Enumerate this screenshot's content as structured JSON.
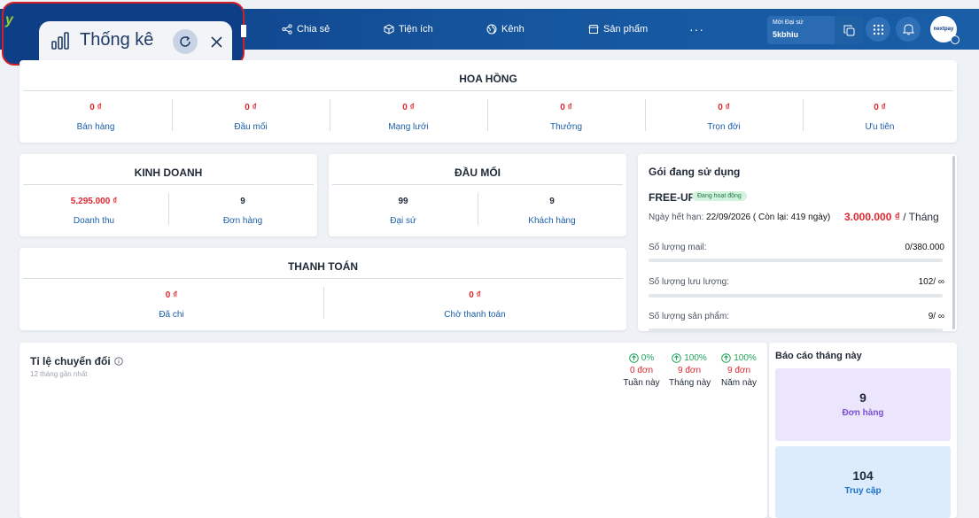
{
  "nav": {
    "share": "Chia sẻ",
    "utilities": "Tiện ích",
    "channel": "Kênh",
    "products": "Sản phẩm",
    "more": "···"
  },
  "ambassador": {
    "label": "Mời Đại sứ",
    "code": "5kbhiu"
  },
  "brand": {
    "name": "nextpay",
    "y_glyph": "y"
  },
  "tab": {
    "title": "Thống kê"
  },
  "commission": {
    "title": "HOA HỒNG",
    "items": [
      {
        "value": "0 ₫",
        "label": "Bán hàng"
      },
      {
        "value": "0 ₫",
        "label": "Đầu mối"
      },
      {
        "value": "0 ₫",
        "label": "Mạng lưới"
      },
      {
        "value": "0 ₫",
        "label": "Thưởng"
      },
      {
        "value": "0 ₫",
        "label": "Trọn đời"
      },
      {
        "value": "0 ₫",
        "label": "Ưu tiên"
      }
    ]
  },
  "business": {
    "title": "KINH DOANH",
    "items": [
      {
        "value": "5.295.000 ₫",
        "label": "Doanh thu"
      },
      {
        "value": "9",
        "label": "Đơn hàng"
      }
    ]
  },
  "hub": {
    "title": "ĐẦU MỐI",
    "items": [
      {
        "value": "99",
        "label": "Đại sứ"
      },
      {
        "value": "9",
        "label": "Khách hàng"
      }
    ]
  },
  "payment": {
    "title": "THANH TOÁN",
    "items": [
      {
        "value": "0 ₫",
        "label": "Đã chi"
      },
      {
        "value": "0 ₫",
        "label": "Chờ thanh toán"
      }
    ]
  },
  "subscription": {
    "title": "Gói đang sử dụng",
    "plan": "FREE-UP",
    "status": "Đang hoạt động",
    "expiry_label": "Ngày hết hạn:",
    "expiry_value": "22/09/2026 ( Còn lại: 419 ngày)",
    "price": "3.000.000 ₫",
    "price_unit": "/ Tháng",
    "quotas": [
      {
        "label": "Số lượng mail:",
        "value": "0/380.000",
        "used_fraction": 0
      },
      {
        "label": "Số lượng lưu lượng:",
        "value": "102/ ∞",
        "used_fraction": 0
      },
      {
        "label": "Số lượng sản phẩm:",
        "value": "9/ ∞",
        "used_fraction": 0
      }
    ]
  },
  "conversion": {
    "title": "Tỉ lệ chuyển đổi",
    "subtitle": "12 tháng gần nhất",
    "kpis": [
      {
        "pct": "0%",
        "count": "0 đơn",
        "label": "Tuần này"
      },
      {
        "pct": "100%",
        "count": "9 đơn",
        "label": "Tháng này"
      },
      {
        "pct": "100%",
        "count": "9 đơn",
        "label": "Năm này"
      }
    ]
  },
  "report": {
    "title": "Báo cáo tháng này",
    "items": [
      {
        "value": "9",
        "label": "Đơn hàng"
      },
      {
        "value": "104",
        "label": "Truy cập"
      }
    ]
  },
  "colors": {
    "header": "#0e3f86",
    "accent_red": "#e0262f",
    "link_blue": "#1a5ea8",
    "success_green": "#22a35a"
  }
}
